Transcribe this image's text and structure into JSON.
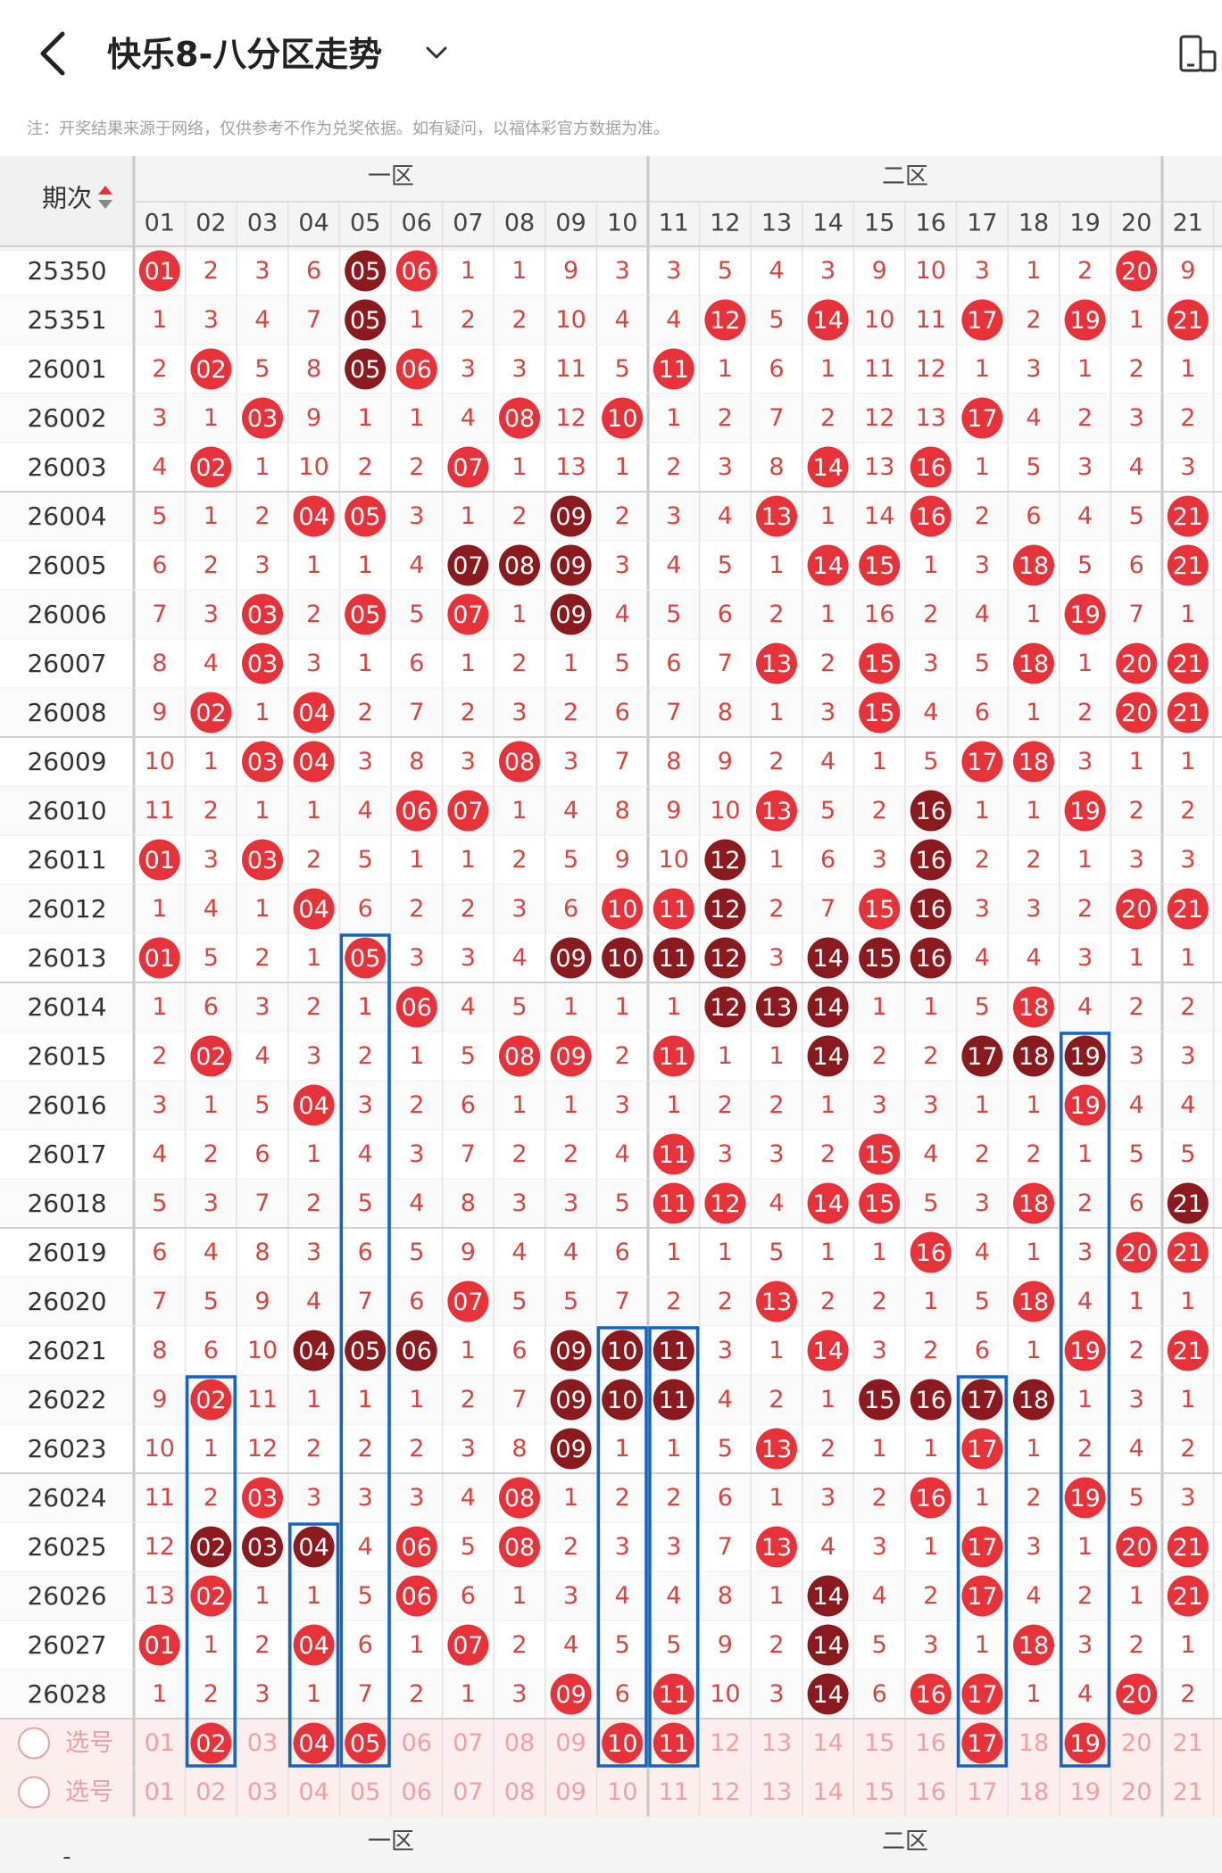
{
  "header": {
    "title": "快乐8-八分区走势"
  },
  "notice": "注：开奖结果来源于网络，仅供参考不作为兑奖依据。如有疑问，以福体彩官方数据为准。",
  "table": {
    "period_header": "期次",
    "zone1": "一区",
    "zone2": "二区",
    "columns": [
      "01",
      "02",
      "03",
      "04",
      "05",
      "06",
      "07",
      "08",
      "09",
      "10",
      "11",
      "12",
      "13",
      "14",
      "15",
      "16",
      "17",
      "18",
      "19",
      "20",
      "21"
    ],
    "periods": [
      "25350",
      "25351",
      "26001",
      "26002",
      "26003",
      "26004",
      "26005",
      "26006",
      "26007",
      "26008",
      "26009",
      "26010",
      "26011",
      "26012",
      "26013",
      "26014",
      "26015",
      "26016",
      "26017",
      "26018",
      "26019",
      "26020",
      "26021",
      "26022",
      "26023",
      "26024",
      "26025",
      "26026",
      "26027",
      "26028"
    ],
    "rows": [
      [
        "01",
        "2",
        "3",
        "6",
        "05",
        "06",
        "1",
        "1",
        "9",
        "3",
        "3",
        "5",
        "4",
        "3",
        "9",
        "10",
        "3",
        "1",
        "2",
        "20",
        "9"
      ],
      [
        "1",
        "3",
        "4",
        "7",
        "05",
        "1",
        "2",
        "2",
        "10",
        "4",
        "4",
        "12",
        "5",
        "14",
        "10",
        "11",
        "17",
        "2",
        "19",
        "1",
        "21"
      ],
      [
        "2",
        "02",
        "5",
        "8",
        "05",
        "06",
        "3",
        "3",
        "11",
        "5",
        "11",
        "1",
        "6",
        "1",
        "11",
        "12",
        "1",
        "3",
        "1",
        "2",
        "1"
      ],
      [
        "3",
        "1",
        "03",
        "9",
        "1",
        "1",
        "4",
        "08",
        "12",
        "10",
        "1",
        "2",
        "7",
        "2",
        "12",
        "13",
        "17",
        "4",
        "2",
        "3",
        "2"
      ],
      [
        "4",
        "02",
        "1",
        "10",
        "2",
        "2",
        "07",
        "1",
        "13",
        "1",
        "2",
        "3",
        "8",
        "14",
        "13",
        "16",
        "1",
        "5",
        "3",
        "4",
        "3"
      ],
      [
        "5",
        "1",
        "2",
        "04",
        "05",
        "3",
        "1",
        "2",
        "09",
        "2",
        "3",
        "4",
        "13",
        "1",
        "14",
        "16",
        "2",
        "6",
        "4",
        "5",
        "21"
      ],
      [
        "6",
        "2",
        "3",
        "1",
        "1",
        "4",
        "07",
        "08",
        "09",
        "3",
        "4",
        "5",
        "1",
        "14",
        "15",
        "1",
        "3",
        "18",
        "5",
        "6",
        "21"
      ],
      [
        "7",
        "3",
        "03",
        "2",
        "05",
        "5",
        "07",
        "1",
        "09",
        "4",
        "5",
        "6",
        "2",
        "1",
        "16",
        "2",
        "4",
        "1",
        "19",
        "7",
        "1"
      ],
      [
        "8",
        "4",
        "03",
        "3",
        "1",
        "6",
        "1",
        "2",
        "1",
        "5",
        "6",
        "7",
        "13",
        "2",
        "15",
        "3",
        "5",
        "18",
        "1",
        "20",
        "21"
      ],
      [
        "9",
        "02",
        "1",
        "04",
        "2",
        "7",
        "2",
        "3",
        "2",
        "6",
        "7",
        "8",
        "1",
        "3",
        "15",
        "4",
        "6",
        "1",
        "2",
        "20",
        "21"
      ],
      [
        "10",
        "1",
        "03",
        "04",
        "3",
        "8",
        "3",
        "08",
        "3",
        "7",
        "8",
        "9",
        "2",
        "4",
        "1",
        "5",
        "17",
        "18",
        "3",
        "1",
        "1"
      ],
      [
        "11",
        "2",
        "1",
        "1",
        "4",
        "06",
        "07",
        "1",
        "4",
        "8",
        "9",
        "10",
        "13",
        "5",
        "2",
        "16",
        "1",
        "1",
        "19",
        "2",
        "2"
      ],
      [
        "01",
        "3",
        "03",
        "2",
        "5",
        "1",
        "1",
        "2",
        "5",
        "9",
        "10",
        "12",
        "1",
        "6",
        "3",
        "16",
        "2",
        "2",
        "1",
        "3",
        "3"
      ],
      [
        "1",
        "4",
        "1",
        "04",
        "6",
        "2",
        "2",
        "3",
        "6",
        "10",
        "11",
        "12",
        "2",
        "7",
        "15",
        "16",
        "3",
        "3",
        "2",
        "20",
        "21"
      ],
      [
        "01",
        "5",
        "2",
        "1",
        "05",
        "3",
        "3",
        "4",
        "09",
        "10",
        "11",
        "12",
        "3",
        "14",
        "15",
        "16",
        "4",
        "4",
        "3",
        "1",
        "1"
      ],
      [
        "1",
        "6",
        "3",
        "2",
        "1",
        "06",
        "4",
        "5",
        "1",
        "1",
        "1",
        "12",
        "13",
        "14",
        "1",
        "1",
        "5",
        "18",
        "4",
        "2",
        "2"
      ],
      [
        "2",
        "02",
        "4",
        "3",
        "2",
        "1",
        "5",
        "08",
        "09",
        "2",
        "11",
        "1",
        "1",
        "14",
        "2",
        "2",
        "17",
        "18",
        "19",
        "3",
        "3"
      ],
      [
        "3",
        "1",
        "5",
        "04",
        "3",
        "2",
        "6",
        "1",
        "1",
        "3",
        "1",
        "2",
        "2",
        "1",
        "3",
        "3",
        "1",
        "1",
        "19",
        "4",
        "4"
      ],
      [
        "4",
        "2",
        "6",
        "1",
        "4",
        "3",
        "7",
        "2",
        "2",
        "4",
        "11",
        "3",
        "3",
        "2",
        "15",
        "4",
        "2",
        "2",
        "1",
        "5",
        "5"
      ],
      [
        "5",
        "3",
        "7",
        "2",
        "5",
        "4",
        "8",
        "3",
        "3",
        "5",
        "11",
        "12",
        "4",
        "14",
        "15",
        "5",
        "3",
        "18",
        "2",
        "6",
        "21"
      ],
      [
        "6",
        "4",
        "8",
        "3",
        "6",
        "5",
        "9",
        "4",
        "4",
        "6",
        "1",
        "1",
        "5",
        "1",
        "1",
        "16",
        "4",
        "1",
        "3",
        "20",
        "21"
      ],
      [
        "7",
        "5",
        "9",
        "4",
        "7",
        "6",
        "07",
        "5",
        "5",
        "7",
        "2",
        "2",
        "13",
        "2",
        "2",
        "1",
        "5",
        "18",
        "4",
        "1",
        "1"
      ],
      [
        "8",
        "6",
        "10",
        "04",
        "05",
        "06",
        "1",
        "6",
        "09",
        "10",
        "11",
        "3",
        "1",
        "14",
        "3",
        "2",
        "6",
        "1",
        "19",
        "2",
        "21"
      ],
      [
        "9",
        "02",
        "11",
        "1",
        "1",
        "1",
        "2",
        "7",
        "09",
        "10",
        "11",
        "4",
        "2",
        "1",
        "15",
        "16",
        "17",
        "18",
        "1",
        "3",
        "1"
      ],
      [
        "10",
        "1",
        "12",
        "2",
        "2",
        "2",
        "3",
        "8",
        "09",
        "1",
        "1",
        "5",
        "13",
        "2",
        "1",
        "1",
        "17",
        "1",
        "2",
        "4",
        "2"
      ],
      [
        "11",
        "2",
        "03",
        "3",
        "3",
        "3",
        "4",
        "08",
        "1",
        "2",
        "2",
        "6",
        "1",
        "3",
        "2",
        "16",
        "1",
        "2",
        "19",
        "5",
        "3"
      ],
      [
        "12",
        "02",
        "03",
        "04",
        "4",
        "06",
        "5",
        "08",
        "2",
        "3",
        "3",
        "7",
        "13",
        "4",
        "3",
        "1",
        "17",
        "3",
        "1",
        "20",
        "21"
      ],
      [
        "13",
        "02",
        "1",
        "1",
        "5",
        "06",
        "6",
        "1",
        "3",
        "4",
        "4",
        "8",
        "1",
        "14",
        "4",
        "2",
        "17",
        "4",
        "2",
        "1",
        "21"
      ],
      [
        "01",
        "1",
        "2",
        "04",
        "6",
        "1",
        "07",
        "2",
        "4",
        "5",
        "5",
        "9",
        "2",
        "14",
        "5",
        "3",
        "1",
        "18",
        "3",
        "2",
        "1"
      ],
      [
        "1",
        "2",
        "3",
        "1",
        "7",
        "2",
        "1",
        "3",
        "09",
        "6",
        "11",
        "10",
        "3",
        "14",
        "6",
        "16",
        "17",
        "1",
        "4",
        "20",
        "2"
      ]
    ],
    "dark": [
      [
        4
      ],
      [
        4
      ],
      [
        4
      ],
      [],
      [],
      [
        8
      ],
      [
        6,
        7,
        8
      ],
      [
        8
      ],
      [],
      [],
      [],
      [
        15
      ],
      [
        11,
        15
      ],
      [
        11,
        15
      ],
      [
        8,
        9,
        10,
        11,
        13,
        14,
        15
      ],
      [
        11,
        12,
        13
      ],
      [
        13,
        16,
        17,
        18
      ],
      [],
      [],
      [
        20
      ],
      [],
      [],
      [
        3,
        4,
        5,
        8,
        9,
        10
      ],
      [
        8,
        9,
        10,
        14,
        15,
        16,
        17
      ],
      [
        8
      ],
      [],
      [
        1,
        2,
        3
      ],
      [
        13
      ],
      [
        13
      ],
      [
        13
      ]
    ],
    "select_label": "选号",
    "select_row1": {
      "values": [
        "01",
        "02",
        "03",
        "04",
        "05",
        "06",
        "07",
        "08",
        "09",
        "10",
        "11",
        "12",
        "13",
        "14",
        "15",
        "16",
        "17",
        "18",
        "19",
        "20",
        "21"
      ],
      "selected": [
        1,
        3,
        4,
        9,
        10,
        16,
        18
      ]
    },
    "select_row2": {
      "values": [
        "01",
        "02",
        "03",
        "04",
        "05",
        "06",
        "07",
        "08",
        "09",
        "10",
        "11",
        "12",
        "13",
        "14",
        "15",
        "16",
        "17",
        "18",
        "19",
        "20",
        "21"
      ]
    },
    "footer_period": "-",
    "footer_zone1": "一区",
    "footer_zone2": "二区"
  },
  "colors": {
    "red": "#e8323a",
    "dark": "#8b1a1e",
    "number": "#d9443f",
    "blue": "#1565c0"
  }
}
